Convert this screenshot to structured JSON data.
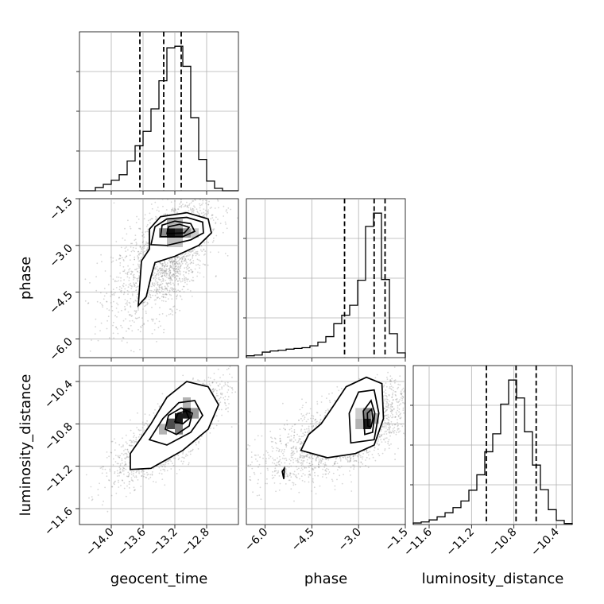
{
  "chart_data": {
    "type": "corner",
    "parameters": [
      "geocent_time",
      "phase",
      "luminosity_distance"
    ],
    "grid": true,
    "ranges": {
      "geocent_time": [
        -14.4,
        -12.4
      ],
      "phase": [
        -6.6,
        -1.5
      ],
      "luminosity_distance": [
        -11.75,
        -10.25
      ]
    },
    "ticks": {
      "geocent_time": [
        -14.0,
        -13.6,
        -13.2,
        -12.8
      ],
      "phase": [
        -6.0,
        -4.5,
        -3.0,
        -1.5
      ],
      "luminosity_distance": [
        -11.6,
        -11.2,
        -10.8,
        -10.4
      ]
    },
    "tick_labels": {
      "geocent_time": [
        "−14.0",
        "−13.6",
        "−13.2",
        "−12.8"
      ],
      "phase": [
        "−6.0",
        "−4.5",
        "−3.0",
        "−1.5"
      ],
      "luminosity_distance": [
        "−11.6",
        "−11.2",
        "−10.8",
        "−10.4"
      ]
    },
    "quantiles": {
      "geocent_time": [
        -13.64,
        -13.34,
        -13.12
      ],
      "phase": [
        -3.45,
        -2.5,
        -2.15
      ],
      "luminosity_distance": [
        -11.06,
        -10.78,
        -10.59
      ]
    },
    "histograms": {
      "geocent_time": {
        "edges": [
          -14.4,
          -14.3,
          -14.2,
          -14.1,
          -14.0,
          -13.9,
          -13.8,
          -13.7,
          -13.6,
          -13.5,
          -13.4,
          -13.3,
          -13.2,
          -13.1,
          -13.0,
          -12.9,
          -12.8,
          -12.7,
          -12.6,
          -12.5,
          -12.4
        ],
        "counts": [
          0,
          0,
          4,
          8,
          13,
          20,
          37,
          56,
          74,
          102,
          137,
          178,
          180,
          155,
          91,
          39,
          12,
          3,
          0,
          0
        ]
      },
      "phase": {
        "edges": [
          -6.6,
          -6.345,
          -6.09,
          -5.835,
          -5.58,
          -5.325,
          -5.07,
          -4.815,
          -4.56,
          -4.305,
          -4.05,
          -3.795,
          -3.54,
          -3.285,
          -3.03,
          -2.775,
          -2.52,
          -2.265,
          -2.01,
          -1.755,
          -1.5
        ],
        "counts": [
          5,
          7,
          15,
          18,
          20,
          23,
          25,
          27,
          32,
          42,
          57,
          92,
          115,
          142,
          210,
          356,
          392,
          212,
          65,
          13
        ]
      },
      "luminosity_distance": {
        "edges": [
          -11.75,
          -11.675,
          -11.6,
          -11.525,
          -11.45,
          -11.375,
          -11.3,
          -11.225,
          -11.15,
          -11.075,
          -11.0,
          -10.925,
          -10.85,
          -10.775,
          -10.7,
          -10.625,
          -10.55,
          -10.475,
          -10.4,
          -10.325,
          -10.25
        ],
        "counts": [
          3,
          5,
          9,
          15,
          23,
          33,
          46,
          67,
          97,
          142,
          177,
          235,
          282,
          247,
          181,
          116,
          68,
          29,
          8,
          2
        ]
      }
    },
    "pairs": [
      {
        "x": "geocent_time",
        "y": "phase",
        "mean": [
          -13.27,
          -3.3
        ],
        "sd": [
          0.26,
          1.0
        ],
        "rho": 0.6,
        "contours": [
          [
            [
              -13.66,
              -4.93
            ],
            [
              -13.62,
              -3.5
            ],
            [
              -13.52,
              -3.12
            ],
            [
              -13.52,
              -2.48
            ],
            [
              -13.38,
              -2.08
            ],
            [
              -13.05,
              -1.95
            ],
            [
              -12.78,
              -2.15
            ],
            [
              -12.74,
              -2.6
            ],
            [
              -12.9,
              -3.0
            ],
            [
              -13.2,
              -3.35
            ],
            [
              -13.45,
              -3.55
            ],
            [
              -13.5,
              -4.0
            ],
            [
              -13.56,
              -4.65
            ],
            [
              -13.66,
              -4.93
            ]
          ],
          [
            [
              -13.5,
              -2.98
            ],
            [
              -13.45,
              -2.4
            ],
            [
              -13.3,
              -2.15
            ],
            [
              -13.05,
              -2.1
            ],
            [
              -12.85,
              -2.25
            ],
            [
              -12.84,
              -2.6
            ],
            [
              -13.0,
              -2.82
            ],
            [
              -13.3,
              -3.0
            ],
            [
              -13.5,
              -2.98
            ]
          ],
          [
            [
              -13.38,
              -2.72
            ],
            [
              -13.36,
              -2.35
            ],
            [
              -13.2,
              -2.22
            ],
            [
              -13.0,
              -2.3
            ],
            [
              -12.95,
              -2.55
            ],
            [
              -13.1,
              -2.72
            ],
            [
              -13.38,
              -2.72
            ]
          ],
          [
            [
              -13.3,
              -2.62
            ],
            [
              -13.28,
              -2.4
            ],
            [
              -13.14,
              -2.32
            ],
            [
              -13.02,
              -2.42
            ],
            [
              -13.08,
              -2.6
            ],
            [
              -13.3,
              -2.62
            ]
          ]
        ],
        "density": [
          {
            "x": [
              -13.3,
              -13.2
            ],
            "y": [
              -2.75,
              -2.45
            ],
            "level": 0.95
          },
          {
            "x": [
              -13.2,
              -13.1
            ],
            "y": [
              -2.75,
              -2.45
            ],
            "level": 0.85
          },
          {
            "x": [
              -13.4,
              -13.3
            ],
            "y": [
              -2.75,
              -2.45
            ],
            "level": 0.45
          },
          {
            "x": [
              -13.1,
              -13.0
            ],
            "y": [
              -2.75,
              -2.45
            ],
            "level": 0.4
          },
          {
            "x": [
              -13.3,
              -13.1
            ],
            "y": [
              -2.45,
              -2.15
            ],
            "level": 0.3
          },
          {
            "x": [
              -13.3,
              -13.1
            ],
            "y": [
              -3.05,
              -2.75
            ],
            "level": 0.25
          },
          {
            "x": [
              -13.0,
              -12.9
            ],
            "y": [
              -2.75,
              -2.45
            ],
            "level": 0.2
          }
        ]
      },
      {
        "x": "geocent_time",
        "y": "luminosity_distance",
        "mean": [
          -13.2,
          -10.88
        ],
        "sd": [
          0.28,
          0.22
        ],
        "rho": 0.8,
        "contours": [
          [
            [
              -13.76,
              -11.23
            ],
            [
              -13.76,
              -11.08
            ],
            [
              -13.5,
              -10.8
            ],
            [
              -13.3,
              -10.55
            ],
            [
              -13.05,
              -10.4
            ],
            [
              -12.78,
              -10.45
            ],
            [
              -12.65,
              -10.62
            ],
            [
              -12.78,
              -10.85
            ],
            [
              -13.1,
              -11.05
            ],
            [
              -13.5,
              -11.22
            ],
            [
              -13.76,
              -11.23
            ]
          ],
          [
            [
              -13.52,
              -10.95
            ],
            [
              -13.35,
              -10.75
            ],
            [
              -13.15,
              -10.6
            ],
            [
              -12.95,
              -10.58
            ],
            [
              -12.85,
              -10.72
            ],
            [
              -13.0,
              -10.88
            ],
            [
              -13.3,
              -11.0
            ],
            [
              -13.52,
              -10.95
            ]
          ],
          [
            [
              -13.32,
              -10.85
            ],
            [
              -13.28,
              -10.72
            ],
            [
              -13.12,
              -10.65
            ],
            [
              -12.98,
              -10.7
            ],
            [
              -13.02,
              -10.82
            ],
            [
              -13.18,
              -10.9
            ],
            [
              -13.32,
              -10.85
            ]
          ],
          [
            [
              -13.2,
              -10.78
            ],
            [
              -13.16,
              -10.7
            ],
            [
              -13.06,
              -10.68
            ],
            [
              -13.02,
              -10.75
            ],
            [
              -13.1,
              -10.8
            ],
            [
              -13.2,
              -10.78
            ]
          ]
        ],
        "density": [
          {
            "x": [
              -13.2,
              -13.1
            ],
            "y": [
              -10.8,
              -10.7
            ],
            "level": 0.9
          },
          {
            "x": [
              -13.1,
              -13.0
            ],
            "y": [
              -10.75,
              -10.65
            ],
            "level": 0.9
          },
          {
            "x": [
              -13.3,
              -13.2
            ],
            "y": [
              -10.85,
              -10.75
            ],
            "level": 0.7
          },
          {
            "x": [
              -13.2,
              -13.1
            ],
            "y": [
              -10.9,
              -10.8
            ],
            "level": 0.5
          },
          {
            "x": [
              -13.0,
              -12.9
            ],
            "y": [
              -10.75,
              -10.65
            ],
            "level": 0.4
          },
          {
            "x": [
              -13.4,
              -13.3
            ],
            "y": [
              -10.9,
              -10.8
            ],
            "level": 0.3
          },
          {
            "x": [
              -13.1,
              -13.0
            ],
            "y": [
              -10.65,
              -10.55
            ],
            "level": 0.3
          }
        ]
      },
      {
        "x": "phase",
        "y": "luminosity_distance",
        "mean": [
          -3.3,
          -10.88
        ],
        "sd": [
          1.0,
          0.22
        ],
        "rho": 0.65,
        "contours": [
          [
            [
              -4.85,
              -11.05
            ],
            [
              -4.6,
              -10.9
            ],
            [
              -4.2,
              -10.8
            ],
            [
              -3.85,
              -10.65
            ],
            [
              -3.4,
              -10.45
            ],
            [
              -2.75,
              -10.36
            ],
            [
              -2.25,
              -10.42
            ],
            [
              -2.2,
              -10.75
            ],
            [
              -2.5,
              -11.0
            ],
            [
              -3.1,
              -11.08
            ],
            [
              -4.0,
              -11.12
            ],
            [
              -4.85,
              -11.05
            ]
          ],
          [
            [
              -3.25,
              -10.98
            ],
            [
              -3.3,
              -10.7
            ],
            [
              -3.0,
              -10.5
            ],
            [
              -2.5,
              -10.48
            ],
            [
              -2.35,
              -10.7
            ],
            [
              -2.5,
              -10.95
            ],
            [
              -3.25,
              -10.98
            ]
          ],
          [
            [
              -2.8,
              -10.9
            ],
            [
              -2.85,
              -10.68
            ],
            [
              -2.6,
              -10.58
            ],
            [
              -2.48,
              -10.7
            ],
            [
              -2.55,
              -10.88
            ],
            [
              -2.8,
              -10.9
            ]
          ],
          [
            [
              -2.7,
              -10.82
            ],
            [
              -2.72,
              -10.7
            ],
            [
              -2.58,
              -10.66
            ],
            [
              -2.54,
              -10.75
            ],
            [
              -2.6,
              -10.83
            ],
            [
              -2.7,
              -10.82
            ]
          ]
        ],
        "density": [
          {
            "x": [
              -2.85,
              -2.6
            ],
            "y": [
              -10.85,
              -10.75
            ],
            "level": 0.9
          },
          {
            "x": [
              -2.85,
              -2.6
            ],
            "y": [
              -10.75,
              -10.65
            ],
            "level": 0.5
          },
          {
            "x": [
              -3.1,
              -2.85
            ],
            "y": [
              -10.85,
              -10.75
            ],
            "level": 0.3
          },
          {
            "x": [
              -2.6,
              -2.35
            ],
            "y": [
              -10.8,
              -10.7
            ],
            "level": 0.3
          },
          {
            "x": [
              -3.1,
              -2.85
            ],
            "y": [
              -10.75,
              -10.65
            ],
            "level": 0.2
          }
        ],
        "island": [
          [
            -5.45,
            -11.25
          ],
          [
            -5.38,
            -11.22
          ],
          [
            -5.4,
            -11.32
          ],
          [
            -5.45,
            -11.25
          ]
        ]
      }
    ]
  }
}
